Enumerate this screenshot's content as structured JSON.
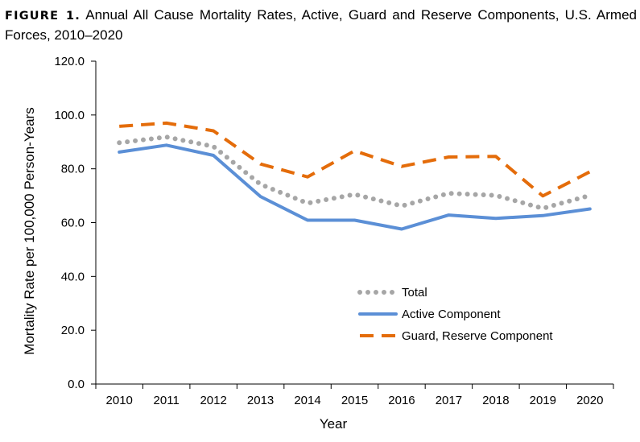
{
  "figure": {
    "label": "FIGURE 1.",
    "caption": "Annual All Cause Mortality Rates, Active, Guard and Reserve Components, U.S. Armed Forces, 2010–2020"
  },
  "chart_data": {
    "type": "line",
    "x": [
      "2010",
      "2011",
      "2012",
      "2013",
      "2014",
      "2015",
      "2016",
      "2017",
      "2018",
      "2019",
      "2020"
    ],
    "xlabel": "Year",
    "ylabel": "Mortality Rate per 100,000 Person-Years",
    "ylim": [
      0,
      120
    ],
    "yticks": [
      "0.0",
      "20.0",
      "40.0",
      "60.0",
      "80.0",
      "100.0",
      "120.0"
    ],
    "grid": false,
    "legend_position": "lower-right inside plot",
    "series": [
      {
        "name": "Total",
        "color": "#a6a6a6",
        "style": "dotted",
        "values": [
          89.7,
          91.8,
          88.3,
          74.2,
          67.2,
          70.5,
          66.2,
          70.9,
          70.1,
          65.3,
          70.1
        ]
      },
      {
        "name": "Active Component",
        "color": "#5b8fd6",
        "style": "solid",
        "values": [
          86.2,
          88.8,
          85.0,
          69.7,
          60.9,
          60.9,
          57.6,
          62.8,
          61.6,
          62.6,
          65.1
        ]
      },
      {
        "name": "Guard, Reserve Component",
        "color": "#e46c0a",
        "style": "dashed",
        "values": [
          95.8,
          97.0,
          94.1,
          81.8,
          77.0,
          86.7,
          80.9,
          84.4,
          84.6,
          69.9,
          78.9
        ]
      }
    ]
  }
}
